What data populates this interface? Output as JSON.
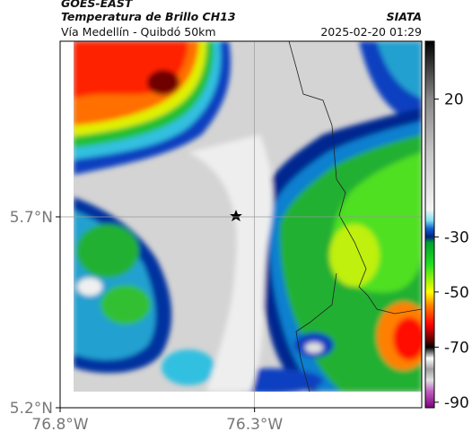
{
  "header": {
    "title": "GOES-EAST",
    "subtitle": "Temperatura de Brillo CH13",
    "route": "Vía Medellín - Quibdó 50km",
    "source": "SIATA",
    "timestamp": "2025-02-20 01:29"
  },
  "map": {
    "xlim": [
      -76.8,
      -75.87
    ],
    "ylim": [
      5.2,
      6.16
    ],
    "xticks": [
      {
        "value": -76.8,
        "label": "76.8°W"
      },
      {
        "value": -76.3,
        "label": "76.3°W"
      }
    ],
    "yticks": [
      {
        "value": 5.2,
        "label": "5.2°N"
      },
      {
        "value": 5.7,
        "label": "5.7°N"
      }
    ],
    "grid": true
  },
  "colorbar": {
    "lim": [
      -92,
      41
    ],
    "ticks": [
      20,
      -30,
      -50,
      -70,
      -90
    ]
  }
}
